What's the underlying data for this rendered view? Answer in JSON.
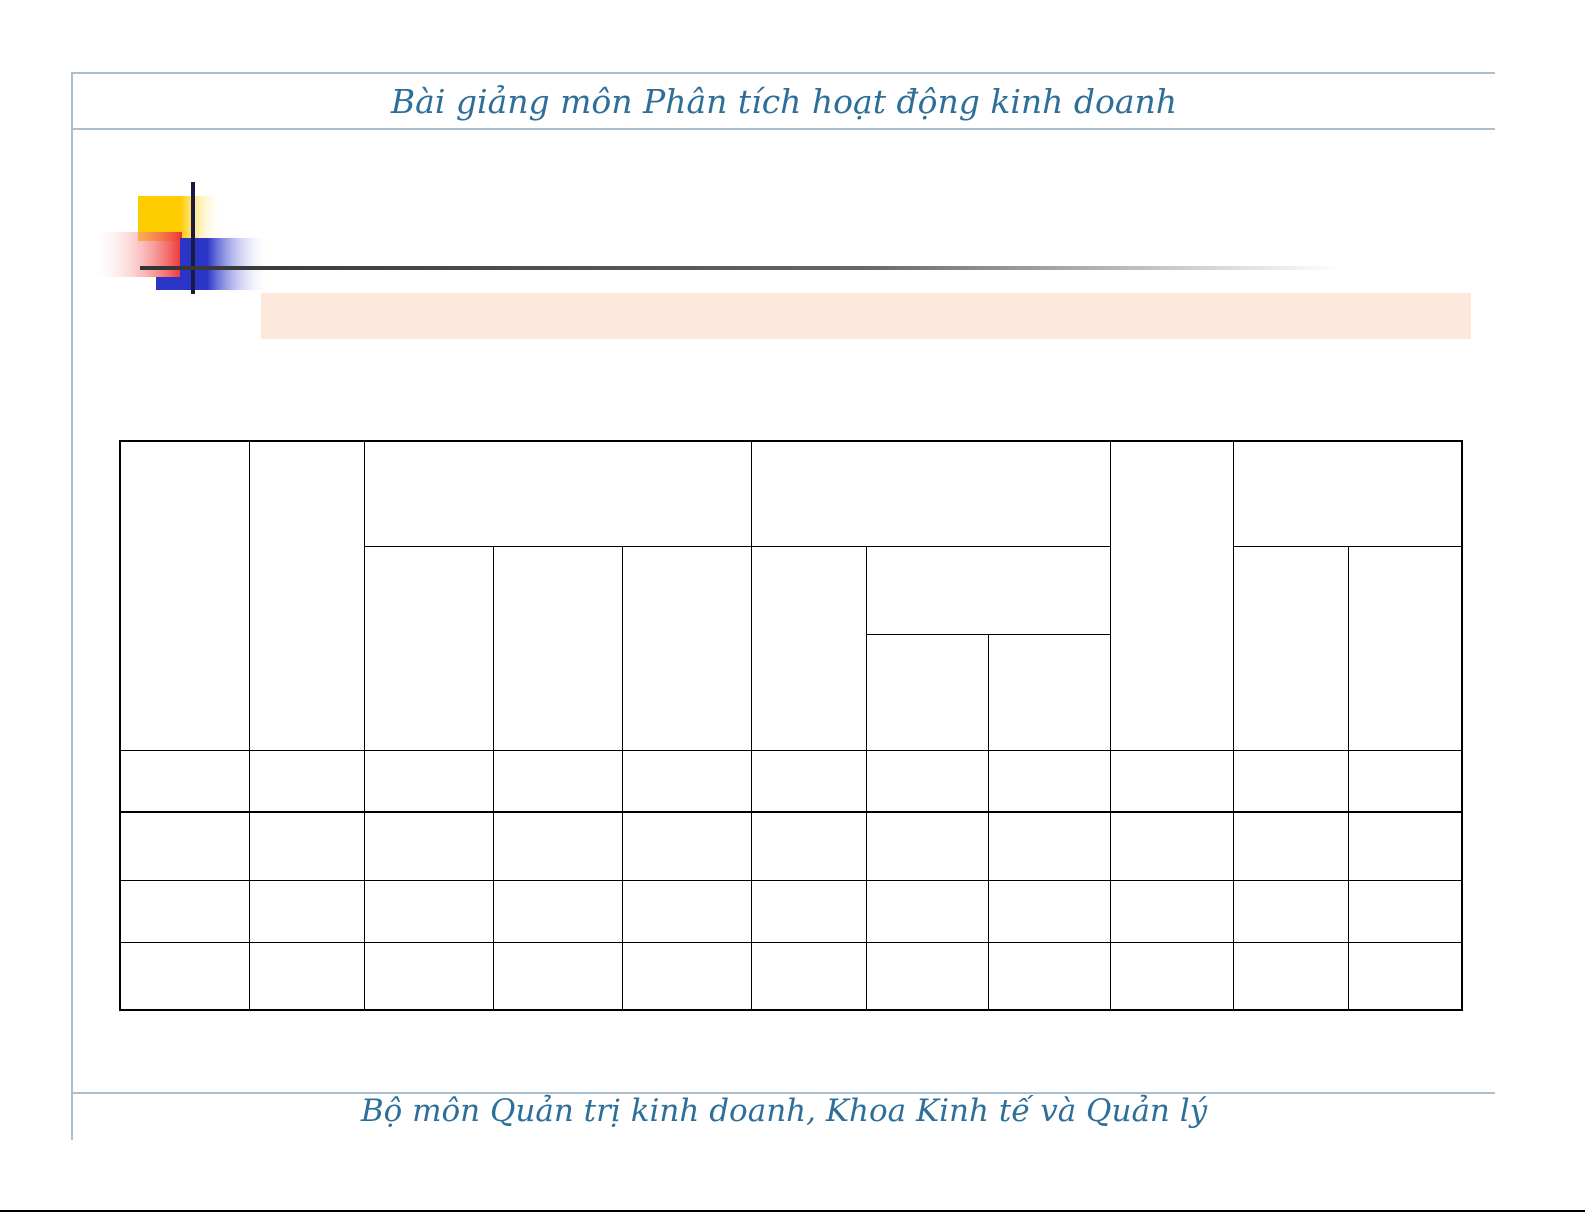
{
  "header": {
    "title": "Bài giảng môn Phân tích hoạt động kinh doanh"
  },
  "footer": {
    "title": "Bộ môn Quản trị kinh doanh, Khoa Kinh tế và Quản lý"
  },
  "colors": {
    "title_text": "#2e6f9a",
    "frame_lines": "#a9bfd0",
    "title_band": "#fde9dc",
    "logo_yellow": "#ffcc00",
    "logo_red": "#ee3333",
    "logo_blue": "#2a35c8"
  }
}
